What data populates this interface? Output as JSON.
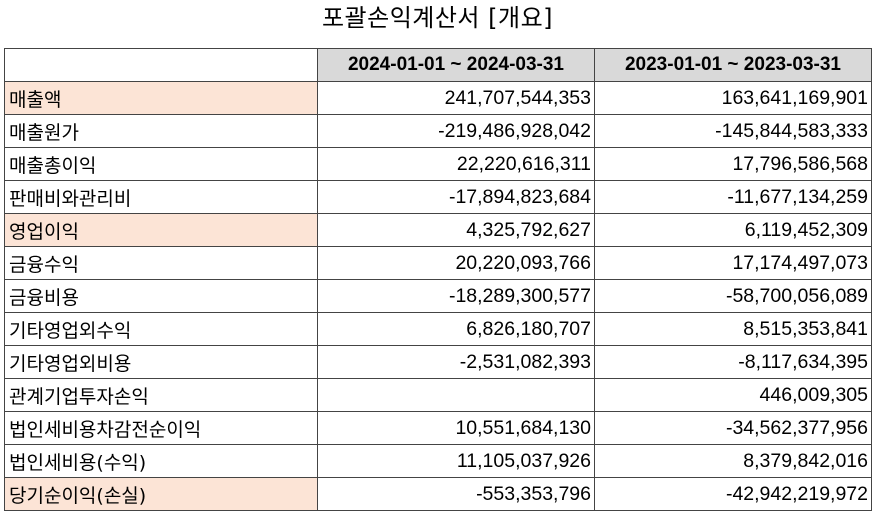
{
  "title": "포괄손익계산서 [개요]",
  "table": {
    "headers": [
      "",
      "2024-01-01 ~ 2024-03-31",
      "2023-01-01 ~ 2023-03-31"
    ],
    "rows": [
      {
        "label": "매출액",
        "v1": "241,707,544,353",
        "v2": "163,641,169,901",
        "highlight": true
      },
      {
        "label": "매출원가",
        "v1": "-219,486,928,042",
        "v2": "-145,844,583,333",
        "highlight": false
      },
      {
        "label": "매출총이익",
        "v1": "22,220,616,311",
        "v2": "17,796,586,568",
        "highlight": false
      },
      {
        "label": "판매비와관리비",
        "v1": "-17,894,823,684",
        "v2": "-11,677,134,259",
        "highlight": false
      },
      {
        "label": "영업이익",
        "v1": "4,325,792,627",
        "v2": "6,119,452,309",
        "highlight": true
      },
      {
        "label": "금융수익",
        "v1": "20,220,093,766",
        "v2": "17,174,497,073",
        "highlight": false
      },
      {
        "label": "금융비용",
        "v1": "-18,289,300,577",
        "v2": "-58,700,056,089",
        "highlight": false
      },
      {
        "label": "기타영업외수익",
        "v1": "6,826,180,707",
        "v2": "8,515,353,841",
        "highlight": false
      },
      {
        "label": "기타영업외비용",
        "v1": "-2,531,082,393",
        "v2": "-8,117,634,395",
        "highlight": false
      },
      {
        "label": "관계기업투자손익",
        "v1": "",
        "v2": "446,009,305",
        "highlight": false
      },
      {
        "label": "법인세비용차감전순이익",
        "v1": "10,551,684,130",
        "v2": "-34,562,377,956",
        "highlight": false
      },
      {
        "label": "법인세비용(수익)",
        "v1": "11,105,037,926",
        "v2": "8,379,842,016",
        "highlight": false
      },
      {
        "label": "당기순이익(손실)",
        "v1": "-553,353,796",
        "v2": "-42,942,219,972",
        "highlight": true
      }
    ]
  },
  "colors": {
    "header_bg": "#d9d9d9",
    "highlight_bg": "#fce4d6",
    "border": "#444444"
  }
}
